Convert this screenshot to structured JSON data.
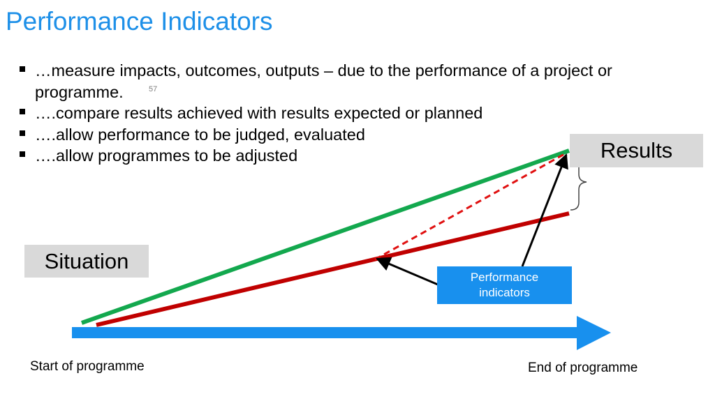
{
  "title": "Performance Indicators",
  "bullets": [
    "…measure impacts, outcomes, outputs – due to the performance of a project or programme.",
    "….compare results achieved with results expected or planned",
    "….allow performance to be judged, evaluated",
    "….allow programmes to be adjusted"
  ],
  "page_number": "57",
  "diagram": {
    "results_label": "Results",
    "situation_label": "Situation",
    "indicators_label_line1": "Performance",
    "indicators_label_line2": "indicators",
    "start_label": "Start of programme",
    "end_label": "End of programme",
    "colors": {
      "title": "#1e90e8",
      "planned_line": "#13a84e",
      "actual_line": "#c00000",
      "projected_line": "#e01010",
      "timeline_arrow": "#1890ee",
      "label_box": "#d9d9d9",
      "indicator_box": "#1890ee"
    }
  }
}
